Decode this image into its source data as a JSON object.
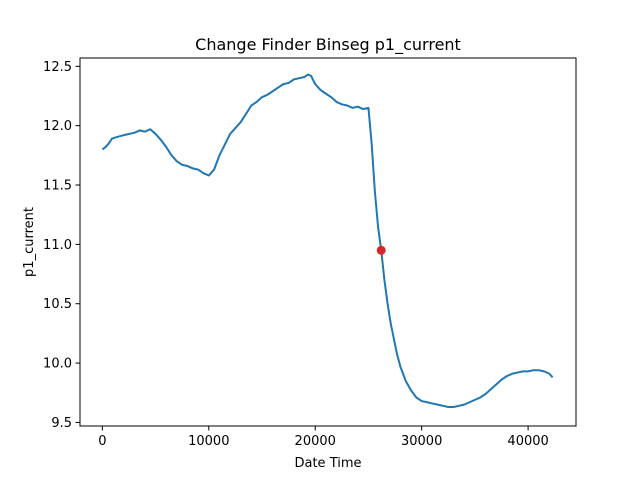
{
  "chart_data": {
    "type": "line",
    "title": "Change Finder Binseg p1_current",
    "xlabel": "Date Time",
    "ylabel": "p1_current",
    "xlim": [
      -2100,
      44500
    ],
    "ylim": [
      9.47,
      12.57
    ],
    "x_ticks": [
      0,
      10000,
      20000,
      30000,
      40000
    ],
    "x_tick_labels": [
      "0",
      "10000",
      "20000",
      "30000",
      "40000"
    ],
    "y_ticks": [
      9.5,
      10.0,
      10.5,
      11.0,
      11.5,
      12.0,
      12.5
    ],
    "y_tick_labels": [
      "9.5",
      "10.0",
      "10.5",
      "11.0",
      "11.5",
      "12.0",
      "12.5"
    ],
    "grid": false,
    "series": [
      {
        "color": "#1f77b4",
        "x": [
          0,
          300,
          600,
          900,
          1200,
          2000,
          3000,
          3500,
          4000,
          4500,
          5000,
          5500,
          6000,
          6500,
          7000,
          7500,
          8000,
          8500,
          9000,
          9500,
          10000,
          10500,
          11000,
          11500,
          12000,
          12500,
          13000,
          13500,
          14000,
          14500,
          15000,
          15500,
          16000,
          16500,
          17000,
          17500,
          18000,
          18500,
          19000,
          19300,
          19600,
          20000,
          20500,
          21000,
          21500,
          22000,
          22500,
          23000,
          23500,
          24000,
          24500,
          25000,
          25300,
          25600,
          25900,
          26200,
          26500,
          26800,
          27100,
          27400,
          27700,
          28000,
          28500,
          29000,
          29500,
          30000,
          30500,
          31000,
          31500,
          32000,
          32500,
          33000,
          33500,
          34000,
          34500,
          35000,
          35500,
          36000,
          36500,
          37000,
          37500,
          38000,
          38500,
          39000,
          39500,
          40000,
          40500,
          41000,
          41500,
          42000,
          42300
        ],
        "y": [
          11.8,
          11.82,
          11.85,
          11.89,
          11.9,
          11.92,
          11.94,
          11.96,
          11.95,
          11.97,
          11.93,
          11.88,
          11.82,
          11.75,
          11.7,
          11.67,
          11.66,
          11.64,
          11.63,
          11.6,
          11.58,
          11.63,
          11.75,
          11.84,
          11.93,
          11.98,
          12.03,
          12.1,
          12.17,
          12.2,
          12.24,
          12.26,
          12.29,
          12.32,
          12.35,
          12.36,
          12.39,
          12.4,
          12.41,
          12.43,
          12.42,
          12.35,
          12.3,
          12.27,
          12.24,
          12.2,
          12.18,
          12.17,
          12.15,
          12.16,
          12.14,
          12.15,
          11.85,
          11.45,
          11.15,
          10.95,
          10.7,
          10.5,
          10.33,
          10.2,
          10.07,
          9.97,
          9.85,
          9.77,
          9.71,
          9.68,
          9.67,
          9.66,
          9.65,
          9.64,
          9.63,
          9.63,
          9.64,
          9.65,
          9.67,
          9.69,
          9.71,
          9.74,
          9.78,
          9.82,
          9.86,
          9.89,
          9.91,
          9.92,
          9.93,
          9.93,
          9.94,
          9.94,
          9.93,
          9.91,
          9.88
        ]
      }
    ],
    "change_points": [
      {
        "x": 26200,
        "y": 10.95,
        "color": "#d62728"
      }
    ]
  }
}
